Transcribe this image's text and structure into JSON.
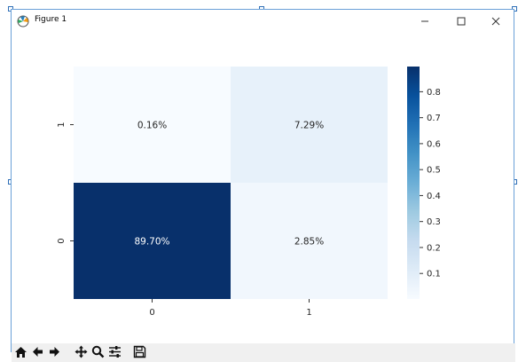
{
  "window": {
    "title": "Figure 1",
    "minimize_icon": "minimize-icon",
    "maximize_icon": "maximize-icon",
    "close_icon": "close-icon",
    "app_icon": "matplotlib-logo-icon"
  },
  "toolbar": {
    "items": [
      {
        "name": "home-icon"
      },
      {
        "name": "back-arrow-icon"
      },
      {
        "name": "forward-arrow-icon"
      },
      {
        "name": "pan-icon"
      },
      {
        "name": "zoom-icon"
      },
      {
        "name": "subplots-config-icon"
      },
      {
        "name": "save-icon"
      }
    ]
  },
  "chart_data": {
    "type": "heatmap",
    "x_categories": [
      "0",
      "1"
    ],
    "y_categories": [
      "1",
      "0"
    ],
    "values": [
      [
        0.0016,
        0.0729
      ],
      [
        0.897,
        0.0285
      ]
    ],
    "annotations": [
      [
        "0.16%",
        "7.29%"
      ],
      [
        "89.70%",
        "2.85%"
      ]
    ],
    "colormap": "Blues",
    "vmin": 0.0016,
    "vmax": 0.897,
    "colorbar_ticks": [
      "0.1",
      "0.2",
      "0.3",
      "0.4",
      "0.5",
      "0.6",
      "0.7",
      "0.8"
    ],
    "colorbar_tick_values": [
      0.1,
      0.2,
      0.3,
      0.4,
      0.5,
      0.6,
      0.7,
      0.8
    ],
    "grid": false
  }
}
